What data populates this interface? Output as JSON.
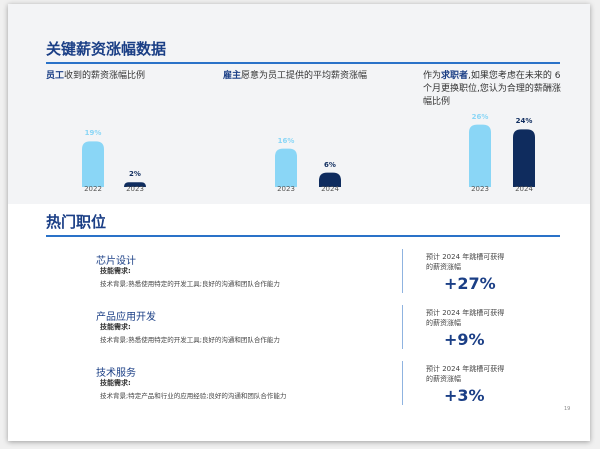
{
  "header": {
    "title": "关键薪资涨幅数据"
  },
  "chart_data": [
    {
      "type": "bar",
      "title_parts": [
        "员工",
        "收到的薪资涨幅比例"
      ],
      "categories": [
        "2022",
        "2023"
      ],
      "values": [
        19,
        2
      ],
      "value_labels": [
        "19%",
        "2%"
      ],
      "colors": [
        "#8ad6f6",
        "#0f2c5e"
      ]
    },
    {
      "type": "bar",
      "title_parts": [
        "雇主",
        "愿意为员工提供的平均薪资涨幅"
      ],
      "categories": [
        "2023",
        "2024"
      ],
      "values": [
        16,
        6
      ],
      "value_labels": [
        "16%",
        "6%"
      ],
      "colors": [
        "#8ad6f6",
        "#0f2c5e"
      ]
    },
    {
      "type": "bar",
      "title_parts": [
        "作为",
        "求职者",
        ",如果您考虑在未来的 6 个月更换职位,您认为合理的薪酬涨幅比例"
      ],
      "categories": [
        "2023",
        "2024"
      ],
      "values": [
        26,
        24
      ],
      "value_labels": [
        "26%",
        "24%"
      ],
      "colors": [
        "#8ad6f6",
        "#0f2c5e"
      ]
    }
  ],
  "section": {
    "title": "热门职位"
  },
  "jobs": [
    {
      "name": "芯片设计",
      "skill_label": "技能需求:",
      "description": "技术背景;熟悉使用特定的开发工具;良好的沟通和团队合作能力",
      "forecast": "预计 2024 年跳槽可获得的薪资涨幅",
      "change": "+27%"
    },
    {
      "name": "产品应用开发",
      "skill_label": "技能需求:",
      "description": "技术背景;熟悉使用特定的开发工具;良好的沟通和团队合作能力",
      "forecast": "预计 2024 年跳槽可获得的薪资涨幅",
      "change": "+9%"
    },
    {
      "name": "技术服务",
      "skill_label": "技能需求:",
      "description": "技术背景;特定产品和行业的应用经验;良好的沟通和团队合作能力",
      "forecast": "预计 2024 年跳槽可获得的薪资涨幅",
      "change": "+3%"
    }
  ],
  "page_number": "19"
}
